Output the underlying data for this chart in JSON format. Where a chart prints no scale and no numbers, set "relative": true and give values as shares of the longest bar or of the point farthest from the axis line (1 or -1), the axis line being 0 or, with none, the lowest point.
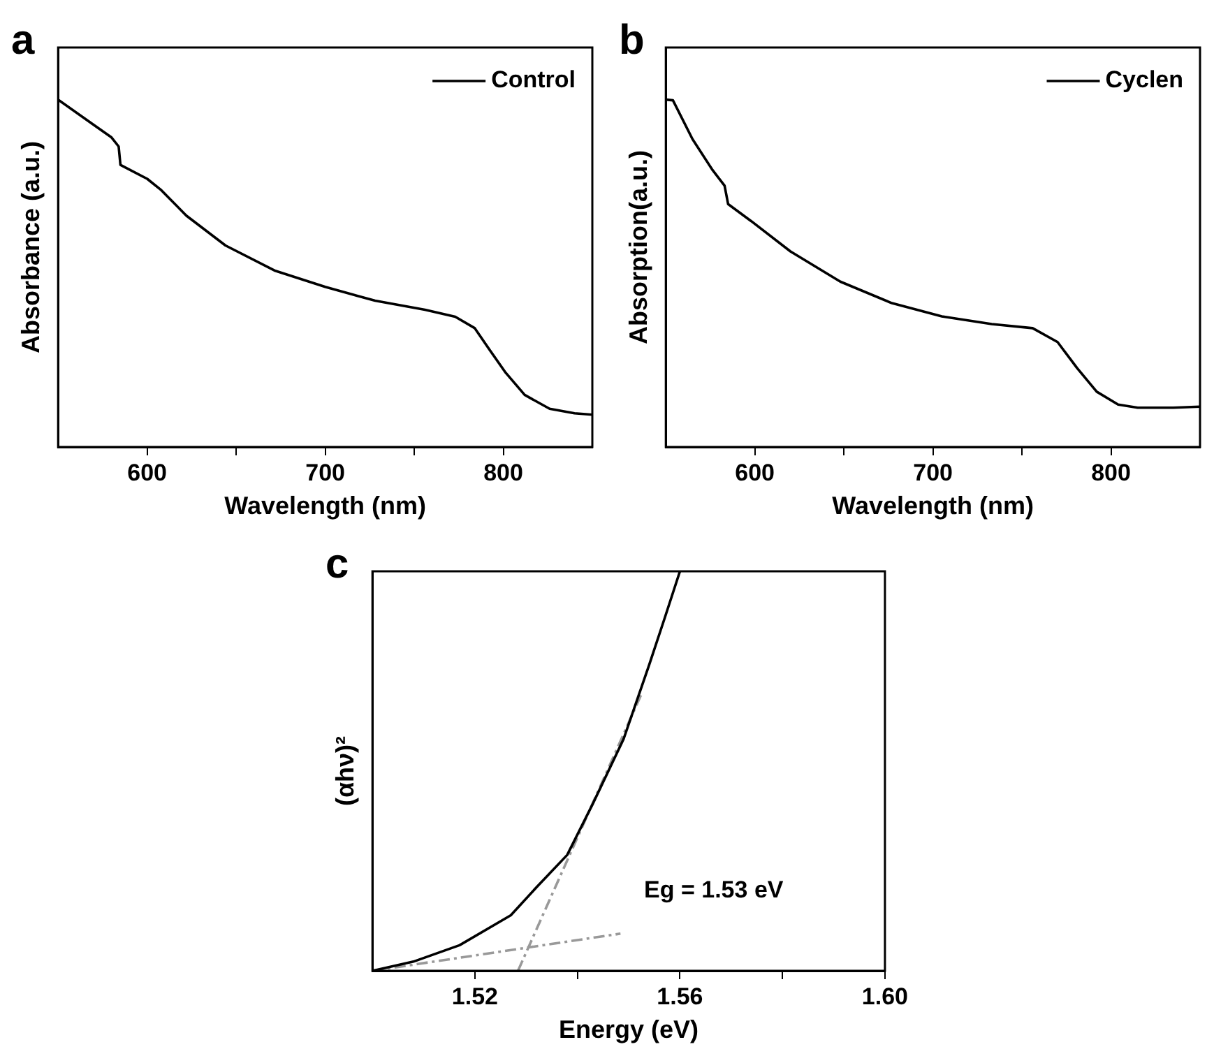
{
  "chart_data": [
    {
      "type": "line",
      "title": "a",
      "xlabel": "Wavelength (nm)",
      "ylabel": "Absorbance (a.u.)",
      "relative": true,
      "legend": "top right",
      "xlim": [
        550,
        850
      ],
      "xticks": [
        600,
        {
          "value": 650,
          "label": null
        },
        700,
        {
          "value": 750,
          "label": null
        },
        800
      ],
      "series": [
        {
          "name": "Control",
          "color": "#000000",
          "x": [
            550,
            569,
            580,
            584,
            585,
            600,
            608,
            622,
            644,
            672,
            700,
            728,
            756,
            773,
            784,
            792,
            801,
            812,
            826,
            840,
            850
          ],
          "values": [
            1.0,
            0.931,
            0.891,
            0.865,
            0.812,
            0.772,
            0.739,
            0.666,
            0.58,
            0.507,
            0.461,
            0.421,
            0.395,
            0.375,
            0.342,
            0.282,
            0.216,
            0.15,
            0.11,
            0.097,
            0.093
          ]
        }
      ]
    },
    {
      "type": "line",
      "title": "b",
      "xlabel": "Wavelength (nm)",
      "ylabel": "Absorption(a.u.)",
      "relative": true,
      "legend": "top right",
      "xlim": [
        550,
        850
      ],
      "xticks": [
        600,
        {
          "value": 650,
          "label": null
        },
        700,
        {
          "value": 750,
          "label": null
        },
        800
      ],
      "series": [
        {
          "name": "Cyclen",
          "color": "#000000",
          "x": [
            550,
            554,
            565,
            576,
            583,
            585,
            598,
            620,
            648,
            677,
            705,
            733,
            756,
            770,
            781,
            792,
            804,
            815,
            835,
            850
          ],
          "values": [
            1.0,
            0.998,
            0.886,
            0.799,
            0.752,
            0.699,
            0.65,
            0.563,
            0.476,
            0.414,
            0.376,
            0.354,
            0.342,
            0.302,
            0.227,
            0.159,
            0.122,
            0.113,
            0.113,
            0.116
          ]
        }
      ]
    },
    {
      "type": "line",
      "title": "c",
      "xlabel": "Energy (eV)",
      "ylabel": "(αhν)²",
      "relative": true,
      "xlim": [
        1.5,
        1.6
      ],
      "xticks": [
        1.52,
        {
          "value": 1.54,
          "label": null
        },
        1.56,
        {
          "value": 1.58,
          "label": null
        },
        {
          "value": 1.6,
          "label": "1.60"
        }
      ],
      "annotations": [
        "Eg = 1.53 eV"
      ],
      "series": [
        {
          "color": "#000000",
          "x": [
            1.5,
            1.508,
            1.517,
            1.527,
            1.532,
            1.538,
            1.543,
            1.549,
            1.554,
            1.557,
            1.56
          ],
          "values": [
            0,
            0.023,
            0.064,
            0.139,
            0.209,
            0.29,
            0.418,
            0.58,
            0.766,
            0.882,
            1.0
          ]
        },
        {
          "color": "#999999",
          "line_style": "dashed",
          "x": [
            1.5284,
            1.5526
          ],
          "values": [
            0,
            0.696
          ]
        },
        {
          "color": "#999999",
          "line_style": "dashed",
          "x": [
            1.5,
            1.5484
          ],
          "values": [
            0,
            0.093
          ]
        }
      ]
    }
  ]
}
